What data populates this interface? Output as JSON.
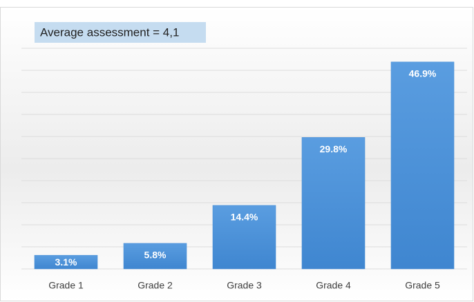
{
  "chart_data": {
    "type": "bar",
    "title": "Average assessment = 4,1",
    "categories": [
      "Grade 1",
      "Grade 2",
      "Grade 3",
      "Grade 4",
      "Grade 5"
    ],
    "values": [
      3.1,
      5.8,
      14.4,
      29.8,
      46.9
    ],
    "value_labels": [
      "3.1%",
      "5.8%",
      "14.4%",
      "29.8%",
      "46.9%"
    ],
    "color": "#4a8fd6",
    "ylim": [
      0,
      50
    ],
    "yticks": [
      0,
      5,
      10,
      15,
      20,
      25,
      30,
      35,
      40,
      45,
      50
    ],
    "grid": true
  }
}
